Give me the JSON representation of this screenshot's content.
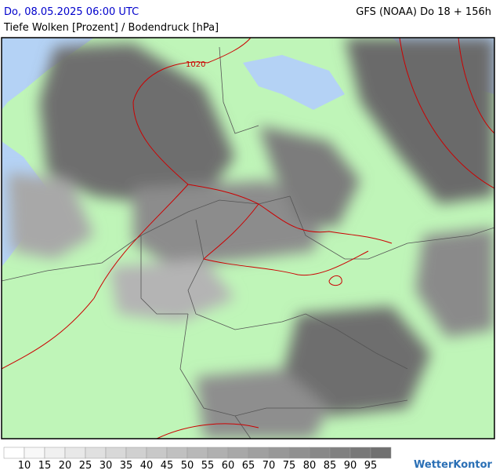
{
  "header": {
    "valid_time": "Do, 08.05.2025 06:00 UTC",
    "model_run": "GFS (NOAA) Do 18 + 156h",
    "parameter": "Tiefe Wolken [Prozent] / Bodendruck [hPa]"
  },
  "map": {
    "isobar_label": "1020"
  },
  "legend": {
    "ticks": [
      10,
      15,
      20,
      25,
      30,
      35,
      40,
      45,
      50,
      55,
      60,
      65,
      70,
      75,
      80,
      85,
      90,
      95
    ],
    "colors": [
      "#ffffff",
      "#f8f8f8",
      "#f0f0f0",
      "#e8e8e8",
      "#e0e0e0",
      "#d8d8d8",
      "#d0d0d0",
      "#c8c8c8",
      "#c0c0c0",
      "#b8b8b8",
      "#b0b0b0",
      "#a8a8a8",
      "#a0a0a0",
      "#989898",
      "#909090",
      "#888888",
      "#808080",
      "#787878",
      "#707070"
    ]
  },
  "logo": "WetterKontor"
}
